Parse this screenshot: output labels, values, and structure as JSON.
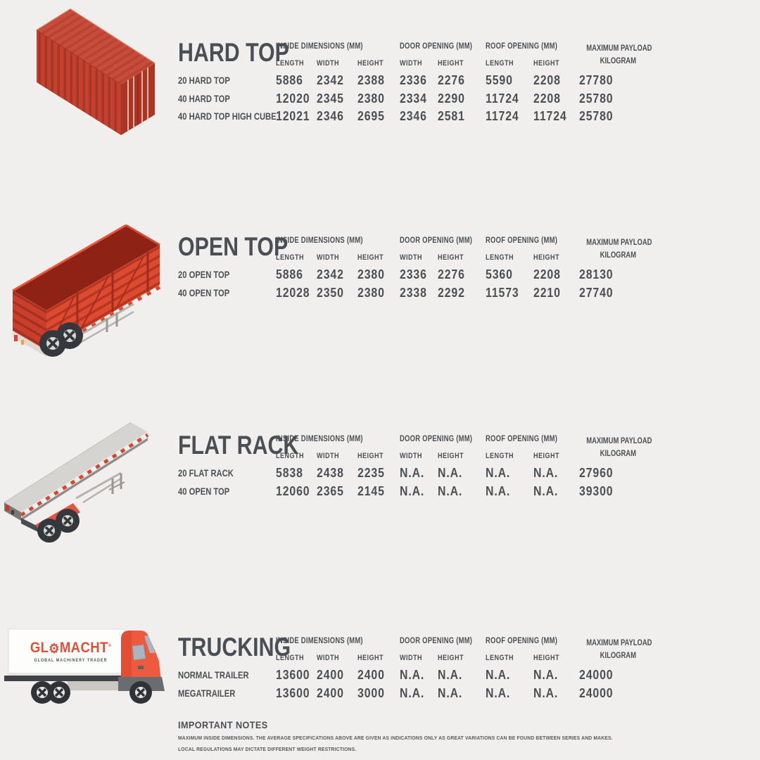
{
  "page": {
    "background": "#f0efed",
    "text_color": "#4b5055",
    "accent_red": "#d8452f"
  },
  "columns": {
    "group_headers": [
      "INSIDE DIMENSIONS (MM)",
      "DOOR OPENING (MM)",
      "ROOF OPENING (MM)"
    ],
    "payload_header": [
      "MAXIMUM PAYLOAD",
      "KILOGRAM"
    ],
    "subheaders": [
      "LENGTH",
      "WIDTH",
      "HEIGHT",
      "WIDTH",
      "HEIGHT",
      "LENGTH",
      "HEIGHT"
    ]
  },
  "sections": [
    {
      "title": "HARD TOP",
      "illustration": "red-hard-top-container",
      "rows": [
        {
          "label": "20 HARD TOP",
          "values": [
            "5886",
            "2342",
            "2388",
            "2336",
            "2276",
            "5590",
            "2208",
            "27780"
          ]
        },
        {
          "label": "40 HARD TOP",
          "values": [
            "12020",
            "2345",
            "2380",
            "2334",
            "2290",
            "11724",
            "2208",
            "25780"
          ]
        },
        {
          "label": "40 HARD TOP HIGH CUBE",
          "values": [
            "12021",
            "2346",
            "2695",
            "2346",
            "2581",
            "11724",
            "11724",
            "25780"
          ]
        }
      ]
    },
    {
      "title": "OPEN TOP",
      "illustration": "red-open-top-trailer",
      "rows": [
        {
          "label": "20 OPEN TOP",
          "values": [
            "5886",
            "2342",
            "2380",
            "2336",
            "2276",
            "5360",
            "2208",
            "28130"
          ]
        },
        {
          "label": "40 OPEN TOP",
          "values": [
            "12028",
            "2350",
            "2380",
            "2338",
            "2292",
            "11573",
            "2210",
            "27740"
          ]
        }
      ]
    },
    {
      "title": "FLAT RACK",
      "illustration": "grey-flat-rack-trailer",
      "rows": [
        {
          "label": "20 FLAT RACK",
          "values": [
            "5838",
            "2438",
            "2235",
            "N.A.",
            "N.A.",
            "N.A.",
            "N.A.",
            "27960"
          ]
        },
        {
          "label": "40 OPEN TOP",
          "values": [
            "12060",
            "2365",
            "2145",
            "N.A.",
            "N.A.",
            "N.A.",
            "N.A.",
            "39300"
          ]
        }
      ]
    },
    {
      "title": "TRUCKING",
      "illustration": "glomacht-box-truck",
      "rows": [
        {
          "label": "NORMAL TRAILER",
          "values": [
            "13600",
            "2400",
            "2400",
            "N.A.",
            "N.A.",
            "N.A.",
            "N.A.",
            "24000"
          ]
        },
        {
          "label": "MEGATRAILER",
          "values": [
            "13600",
            "2400",
            "3000",
            "N.A.",
            "N.A.",
            "N.A.",
            "N.A.",
            "24000"
          ]
        }
      ]
    }
  ],
  "logo": {
    "prefix": "GL",
    "gear_glyph": "⚙",
    "suffix": "MACHT",
    "reg_mark": "®",
    "tagline": "GLOBAL MACHINERY TRADER"
  },
  "notes": {
    "title": "IMPORTANT NOTES",
    "lines": [
      "MAXIMUM INSIDE DIMENSIONS. THE AVERAGE SPECIFICATIONS ABOVE ARE GIVEN AS INDICATIONS ONLY AS GREAT VARIATIONS CAN BE FOUND BETWEEN SERIES AND MAKES.",
      "LOCAL REGULATIONS MAY DICTATE DIFFERENT WEIGHT RESTRICTIONS."
    ]
  }
}
